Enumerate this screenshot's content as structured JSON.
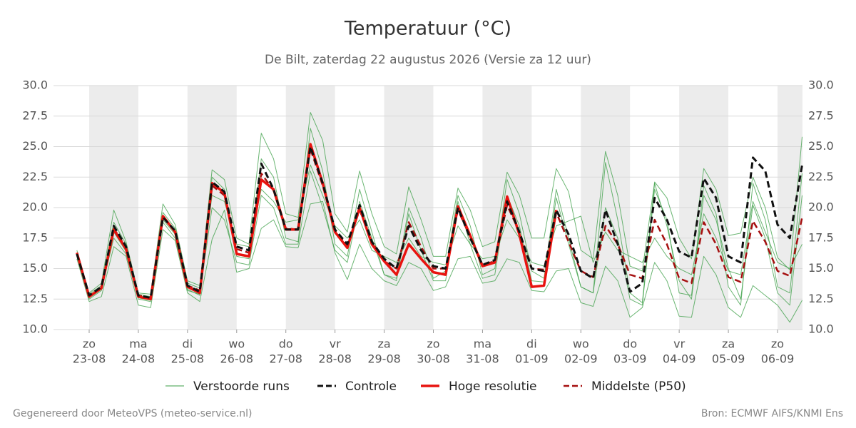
{
  "chart_data": {
    "type": "ensemble-line",
    "title": "Temperatuur (°C)",
    "subtitle": "De Bilt, zaterdag 22 augustus 2026 (Versie za 12 uur)",
    "categories": [
      null,
      "23-08",
      null,
      null,
      null,
      "24-08",
      null,
      null,
      null,
      "25-08",
      null,
      null,
      null,
      "26-08",
      null,
      null,
      null,
      "27-08",
      null,
      null,
      null,
      "28-08",
      null,
      null,
      null,
      "29-08",
      null,
      null,
      null,
      "30-08",
      null,
      null,
      null,
      "31-08",
      null,
      null,
      null,
      "01-09",
      null,
      null,
      null,
      "02-09",
      null,
      null,
      null,
      "03-09",
      null,
      null,
      null,
      "04-09",
      null,
      null,
      null,
      "05-09",
      null,
      null,
      null,
      "06-09",
      null,
      null
    ],
    "weekdays": [
      null,
      "zo",
      null,
      null,
      null,
      "ma",
      null,
      null,
      null,
      "di",
      null,
      null,
      null,
      "wo",
      null,
      null,
      null,
      "do",
      null,
      null,
      null,
      "vr",
      null,
      null,
      null,
      "za",
      null,
      null,
      null,
      "zo",
      null,
      null,
      null,
      "ma",
      null,
      null,
      null,
      "di",
      null,
      null,
      null,
      "wo",
      null,
      null,
      null,
      "do",
      null,
      null,
      null,
      "vr",
      null,
      null,
      null,
      "za",
      null,
      null,
      null,
      "zo",
      null,
      null
    ],
    "ylim": [
      10,
      30
    ],
    "yticks": [
      {
        "value": 10,
        "label": "10.0"
      },
      {
        "value": 12.5,
        "label": "12.5"
      },
      {
        "value": 15,
        "label": "15.0"
      },
      {
        "value": 17.5,
        "label": "17.5"
      },
      {
        "value": 20,
        "label": "20.0"
      },
      {
        "value": 22.5,
        "label": "22.5"
      },
      {
        "value": 25,
        "label": "25.0"
      },
      {
        "value": 27.5,
        "label": "27.5"
      },
      {
        "value": 30,
        "label": "30.0"
      }
    ],
    "grid": true,
    "shade_alternate_days": true,
    "series": [
      {
        "name": "Verstoorde runs",
        "color": "#3a9e44",
        "members": [
          [
            16.5,
            13.0,
            13.8,
            19.8,
            17.2,
            13.0,
            12.9,
            20.3,
            18.6,
            14.0,
            13.6,
            23.1,
            22.3,
            17.5,
            17.0,
            26.1,
            24.0,
            19.5,
            19.2,
            27.8,
            25.5,
            19.5,
            18.0,
            23.0,
            19.5,
            16.8,
            16.2,
            21.7,
            19.0,
            16.0,
            16.0,
            21.6,
            19.8,
            16.8,
            17.2,
            22.9,
            21.0,
            17.5,
            17.5,
            23.2,
            21.3,
            16.5,
            15.8,
            24.6,
            21.0,
            15.2,
            14.8,
            22.1,
            20.8,
            17.5,
            15.8,
            23.2,
            21.5,
            17.7,
            17.9,
            22.5,
            20.0,
            15.9,
            14.9,
            25.8
          ],
          [
            15.8,
            12.3,
            12.7,
            16.8,
            16.0,
            12.0,
            11.8,
            18.2,
            17.3,
            13.0,
            12.3,
            17.4,
            19.8,
            14.7,
            15.0,
            18.3,
            19.0,
            16.8,
            16.7,
            20.3,
            20.5,
            16.3,
            14.1,
            17.0,
            15.0,
            14.0,
            13.6,
            15.5,
            15.0,
            13.2,
            13.5,
            15.8,
            16.0,
            13.8,
            14.0,
            15.8,
            15.5,
            13.2,
            13.1,
            14.8,
            15.0,
            12.2,
            11.9,
            15.2,
            14.0,
            11.0,
            11.8,
            15.5,
            14.0,
            11.1,
            11.0,
            16.0,
            14.5,
            11.8,
            11.0,
            13.6,
            12.8,
            12.0,
            10.6,
            12.4
          ],
          [
            16.0,
            12.5,
            13.2,
            18.0,
            16.4,
            12.5,
            12.3,
            19.0,
            17.8,
            13.3,
            12.8,
            22.5,
            21.5,
            16.0,
            15.8,
            24.0,
            22.5,
            17.5,
            17.2,
            26.5,
            23.0,
            17.0,
            16.0,
            21.5,
            18.0,
            14.5,
            14.2,
            20.0,
            17.5,
            14.2,
            14.8,
            21.0,
            18.5,
            14.5,
            15.0,
            22.3,
            19.5,
            14.8,
            14.2,
            21.5,
            17.5,
            13.5,
            13.0,
            23.7,
            19.0,
            13.0,
            12.2,
            22.0,
            18.5,
            14.0,
            12.5,
            21.0,
            19.0,
            15.0,
            12.5,
            20.2,
            17.5,
            13.0,
            12.0,
            21.0
          ],
          [
            16.3,
            12.9,
            13.6,
            18.8,
            17.0,
            12.9,
            12.7,
            19.6,
            18.3,
            13.8,
            13.4,
            21.0,
            20.5,
            17.0,
            16.8,
            21.5,
            20.5,
            18.8,
            19.0,
            23.5,
            21.0,
            18.5,
            17.5,
            19.0,
            16.5,
            16.0,
            15.5,
            17.5,
            16.0,
            15.5,
            15.3,
            18.5,
            17.0,
            15.8,
            16.0,
            19.0,
            17.5,
            15.5,
            15.2,
            18.5,
            18.9,
            19.3,
            15.5,
            18.0,
            16.5,
            16.0,
            15.5,
            17.5,
            16.0,
            15.0,
            14.5,
            19.5,
            17.5,
            14.8,
            14.5,
            20.5,
            18.0,
            15.5,
            15.0,
            17.0
          ],
          [
            16.1,
            12.6,
            13.3,
            17.5,
            16.2,
            12.6,
            12.4,
            18.8,
            17.5,
            13.2,
            12.9,
            20.0,
            19.0,
            15.5,
            15.3,
            21.0,
            20.0,
            17.0,
            17.0,
            23.0,
            20.0,
            16.5,
            15.5,
            20.5,
            17.5,
            14.5,
            14.0,
            19.5,
            16.5,
            14.0,
            14.0,
            20.5,
            17.0,
            14.2,
            14.5,
            21.0,
            18.5,
            14.0,
            13.9,
            20.8,
            17.0,
            13.5,
            13.0,
            20.0,
            17.5,
            12.5,
            12.0,
            21.5,
            19.0,
            13.0,
            12.8,
            21.8,
            19.5,
            13.5,
            12.0,
            22.0,
            19.0,
            13.5,
            13.0,
            22.8
          ]
        ]
      },
      {
        "name": "Middelste (P50)",
        "color": "#a50f0f",
        "dashed": true,
        "width": 2.5,
        "values": [
          16.2,
          12.7,
          13.4,
          18.3,
          16.7,
          12.8,
          12.6,
          19.2,
          18.0,
          13.6,
          13.2,
          21.8,
          21.0,
          16.6,
          16.3,
          22.8,
          21.4,
          18.3,
          18.2,
          24.8,
          21.8,
          18.1,
          16.9,
          19.8,
          17.2,
          15.6,
          15.0,
          18.8,
          16.8,
          15.0,
          15.0,
          19.8,
          17.6,
          15.3,
          15.6,
          20.2,
          18.0,
          15.0,
          14.9,
          19.6,
          17.2,
          14.8,
          14.3,
          18.5,
          17.0,
          14.5,
          14.2,
          19.0,
          17.0,
          14.2,
          13.8,
          18.8,
          17.0,
          14.3,
          13.9,
          18.9,
          17.2,
          14.8,
          14.4,
          19.2
        ]
      },
      {
        "name": "Hoge resolutie",
        "color": "#e8130f",
        "dashed": false,
        "width": 3.5,
        "values": [
          16.3,
          12.7,
          13.4,
          18.2,
          16.6,
          12.7,
          12.5,
          19.3,
          18.0,
          13.5,
          13.0,
          22.0,
          21.2,
          16.2,
          16.0,
          22.3,
          21.5,
          18.2,
          18.2,
          25.2,
          22.0,
          18.0,
          16.7,
          20.0,
          17.0,
          15.6,
          14.5,
          17.0,
          15.8,
          14.7,
          14.5,
          20.1,
          17.7,
          15.2,
          15.5,
          20.9,
          17.8,
          13.5,
          13.6,
          19.8,
          null,
          null,
          null,
          null,
          null,
          null,
          null,
          null,
          null,
          null,
          null,
          null,
          null,
          null,
          null,
          null,
          null,
          null,
          null,
          null
        ]
      },
      {
        "name": "Controle",
        "color": "#111111",
        "dashed": true,
        "width": 3,
        "values": [
          16.2,
          12.8,
          13.5,
          18.5,
          16.8,
          12.8,
          12.6,
          19.2,
          18.1,
          13.6,
          13.1,
          22.1,
          21.3,
          16.8,
          16.5,
          23.6,
          21.5,
          18.2,
          18.2,
          25.0,
          22.0,
          18.2,
          17.0,
          20.2,
          17.2,
          15.8,
          15.0,
          18.5,
          16.5,
          15.2,
          15.0,
          20.0,
          17.5,
          15.3,
          15.7,
          20.5,
          18.0,
          15.0,
          14.8,
          19.8,
          17.8,
          14.8,
          14.2,
          19.8,
          17.0,
          13.1,
          13.8,
          20.8,
          19.0,
          16.4,
          15.9,
          22.4,
          20.8,
          16.0,
          15.5,
          24.1,
          23.0,
          18.6,
          17.5,
          23.5
        ]
      }
    ],
    "legend_order": [
      0,
      3,
      2,
      1
    ],
    "footer_left": "Gegenereerd door MeteoVPS (meteo-service.nl)",
    "footer_right": "Bron: ECMWF AIFS/KNMI Ens"
  }
}
